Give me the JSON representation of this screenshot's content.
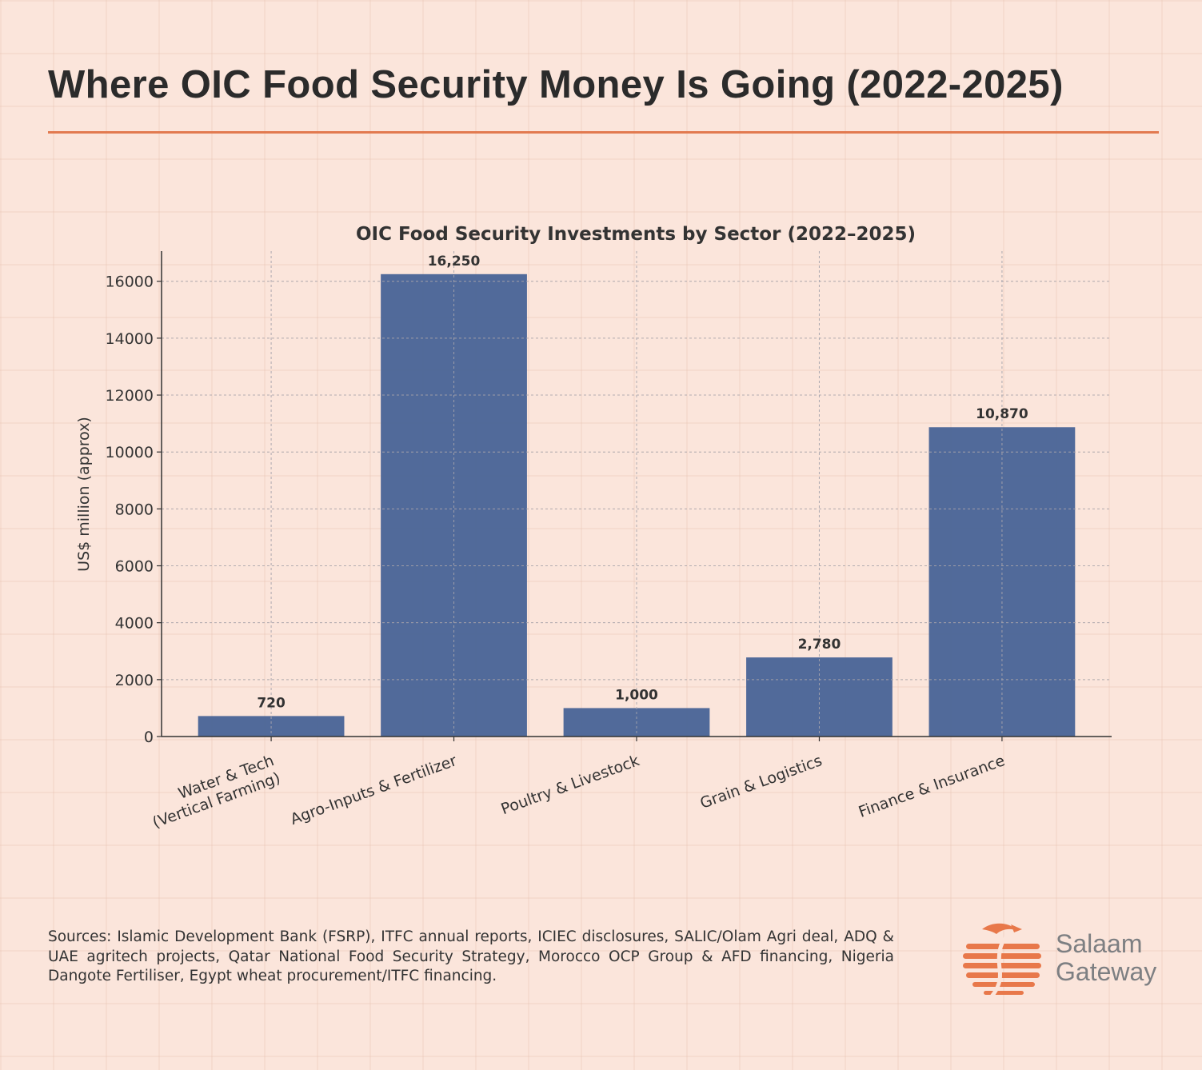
{
  "headline": "Where OIC Food Security Money Is Going (2022-2025)",
  "accent_color": "#e27a50",
  "bar_color": "#4a6597",
  "chart_data": {
    "type": "bar",
    "title": "OIC Food Security Investments by Sector (2022–2025)",
    "xlabel": "",
    "ylabel": "US$ million (approx)",
    "categories": [
      [
        "Water & Tech",
        "(Vertical Farming)"
      ],
      [
        "Agro-Inputs & Fertilizer"
      ],
      [
        "Poultry & Livestock"
      ],
      [
        "Grain & Logistics"
      ],
      [
        "Finance & Insurance"
      ]
    ],
    "values": [
      720,
      16250,
      1000,
      2780,
      10870
    ],
    "value_labels": [
      "720",
      "16,250",
      "1,000",
      "2,780",
      "10,870"
    ],
    "yticks": [
      0,
      2000,
      4000,
      6000,
      8000,
      10000,
      12000,
      14000,
      16000
    ],
    "ylim": [
      0,
      17060
    ],
    "grid": true
  },
  "sources": "Sources: Islamic Development Bank (FSRP), ITFC annual reports, ICIEC disclosures, SALIC/Olam Agri deal, ADQ & UAE agritech projects, Qatar National Food Security Strategy, Morocco OCP Group & AFD financing, Nigeria Dangote Fertiliser, Egypt wheat procurement/ITFC financing.",
  "logo": {
    "line1": "Salaam",
    "line2": "Gateway",
    "icon": "eagle-globe-icon"
  }
}
